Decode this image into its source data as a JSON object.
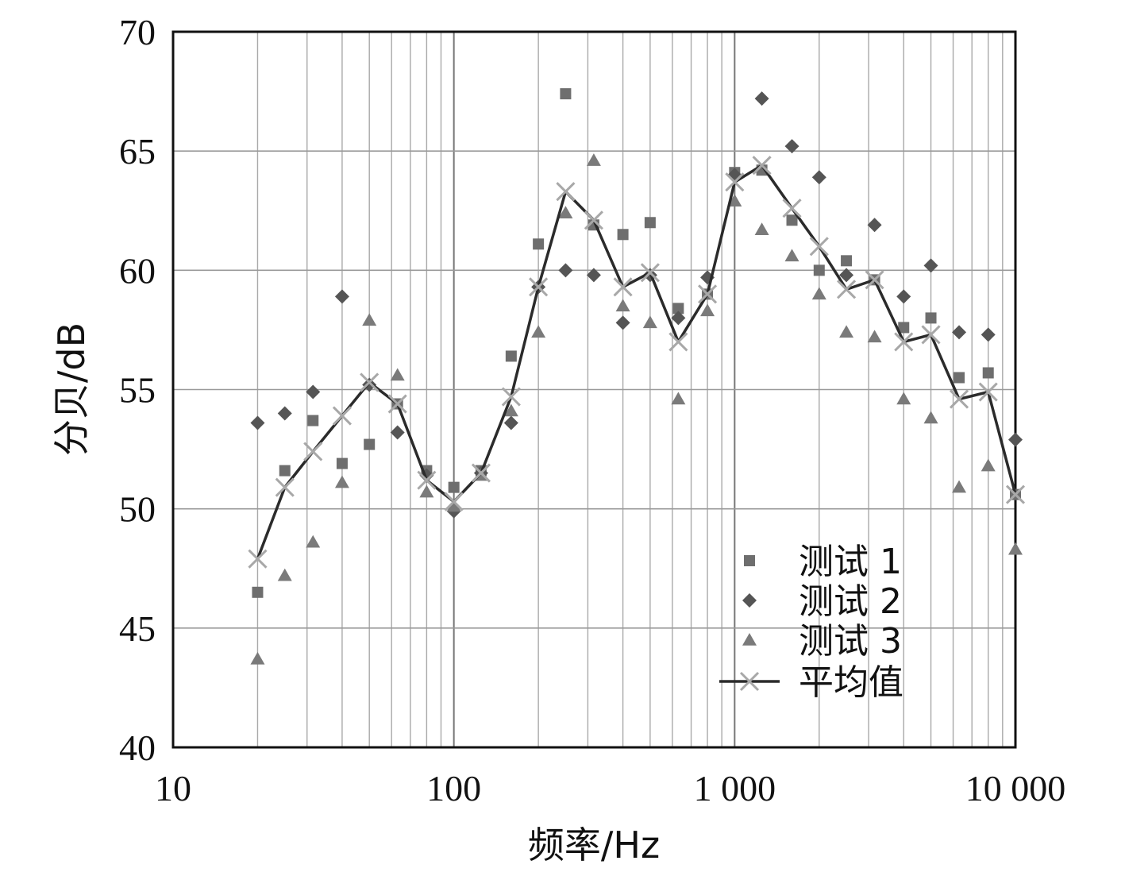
{
  "chart_data": {
    "type": "scatter",
    "title": "",
    "xlabel": "频率/Hz",
    "ylabel": "分贝/dB",
    "xscale": "log",
    "xlim": [
      10,
      10000
    ],
    "ylim": [
      40,
      70
    ],
    "x_ticks": [
      {
        "value": 10,
        "label": "10"
      },
      {
        "value": 100,
        "label": "100"
      },
      {
        "value": 1000,
        "label": "1 000"
      },
      {
        "value": 10000,
        "label": "10 000"
      }
    ],
    "y_ticks": [
      {
        "value": 40,
        "label": "40"
      },
      {
        "value": 45,
        "label": "45"
      },
      {
        "value": 50,
        "label": "50"
      },
      {
        "value": 55,
        "label": "55"
      },
      {
        "value": 60,
        "label": "60"
      },
      {
        "value": 65,
        "label": "65"
      },
      {
        "value": 70,
        "label": "70"
      }
    ],
    "grid": true,
    "legend_position": "bottom-right",
    "x": [
      20,
      25,
      31.5,
      40,
      50,
      63,
      80,
      100,
      125,
      160,
      200,
      250,
      315,
      400,
      500,
      630,
      800,
      1000,
      1250,
      1600,
      2000,
      2500,
      3150,
      4000,
      5000,
      6300,
      8000,
      10000
    ],
    "series": [
      {
        "name": "测试 1",
        "marker": "square",
        "color": "#6e6e6e",
        "values": [
          46.5,
          51.6,
          53.7,
          51.9,
          52.7,
          54.4,
          51.6,
          50.9,
          51.6,
          56.4,
          61.1,
          67.4,
          61.9,
          61.5,
          62.0,
          58.4,
          59.0,
          64.1,
          64.2,
          62.1,
          60.0,
          60.4,
          59.6,
          57.6,
          58.0,
          55.5,
          55.7,
          50.6
        ]
      },
      {
        "name": "测试 2",
        "marker": "diamond",
        "color": "#555555",
        "values": [
          53.6,
          54.0,
          54.9,
          58.9,
          55.2,
          53.2,
          51.4,
          49.9,
          51.5,
          53.6,
          59.3,
          60.0,
          59.8,
          57.8,
          59.8,
          58.0,
          59.7,
          64.0,
          67.2,
          65.2,
          63.9,
          59.8,
          61.9,
          58.9,
          60.2,
          57.4,
          57.3,
          52.9
        ]
      },
      {
        "name": "测试 3",
        "marker": "triangle",
        "color": "#7a7a7a",
        "values": [
          43.7,
          47.2,
          48.6,
          51.1,
          57.9,
          55.6,
          50.7,
          50.1,
          51.4,
          54.1,
          57.4,
          62.4,
          64.6,
          58.5,
          57.8,
          54.6,
          58.3,
          62.9,
          61.7,
          60.6,
          59.0,
          57.4,
          57.2,
          54.6,
          53.8,
          50.9,
          51.8,
          48.3
        ]
      },
      {
        "name": "平均值",
        "marker": "x",
        "line": true,
        "color": "#2b2b2b",
        "marker_color": "#a8a8a8",
        "values": [
          47.9,
          50.9,
          52.4,
          53.9,
          55.3,
          54.4,
          51.2,
          50.3,
          51.5,
          54.7,
          59.3,
          63.3,
          62.1,
          59.3,
          59.9,
          57.0,
          59.0,
          63.7,
          64.4,
          62.6,
          61.0,
          59.2,
          59.6,
          57.0,
          57.3,
          54.6,
          54.9,
          50.6
        ]
      }
    ]
  }
}
